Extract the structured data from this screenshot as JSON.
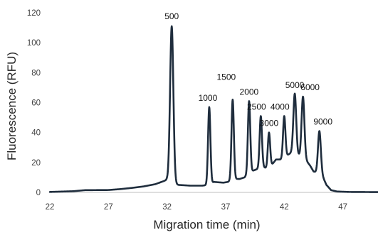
{
  "chart_data": {
    "type": "line",
    "title": "",
    "xlabel": "Migration time (min)",
    "ylabel": "Fluorescence (RFU)",
    "xlim": [
      22,
      50
    ],
    "ylim": [
      0,
      120
    ],
    "xticks": [
      22,
      27,
      32,
      37,
      42,
      47
    ],
    "yticks": [
      0,
      20,
      40,
      60,
      80,
      100,
      120
    ],
    "grid": false,
    "legend": "none",
    "line_color": "#1f2d3d",
    "baseline_points": [
      [
        22,
        0.3
      ],
      [
        24,
        0.8
      ],
      [
        25,
        1.5
      ],
      [
        27,
        1.6
      ],
      [
        28,
        2.2
      ],
      [
        29,
        3.0
      ],
      [
        30,
        4.0
      ],
      [
        31,
        5.5
      ],
      [
        31.7,
        7.5
      ],
      [
        32.0,
        8.5
      ],
      [
        32.3,
        6.0
      ],
      [
        33.0,
        5.0
      ],
      [
        34.0,
        4.5
      ],
      [
        35.0,
        4.5
      ],
      [
        35.5,
        5.0
      ],
      [
        36.0,
        7.0
      ],
      [
        36.8,
        6.5
      ],
      [
        37.2,
        7.0
      ],
      [
        37.7,
        9.0
      ],
      [
        38.2,
        9.0
      ],
      [
        38.6,
        10.0
      ],
      [
        39.2,
        14.0
      ],
      [
        39.5,
        15.0
      ],
      [
        40.2,
        17.0
      ],
      [
        40.5,
        16.0
      ],
      [
        40.8,
        17.0
      ],
      [
        41.3,
        22.0
      ],
      [
        41.7,
        22.0
      ],
      [
        42.3,
        25.0
      ],
      [
        42.7,
        27.0
      ],
      [
        43.2,
        25.0
      ],
      [
        43.8,
        22.0
      ],
      [
        44.2,
        18.0
      ],
      [
        44.5,
        14.0
      ],
      [
        45.2,
        12.0
      ],
      [
        45.6,
        5.0
      ],
      [
        46.0,
        1.5
      ],
      [
        46.5,
        0.6
      ],
      [
        47.5,
        0.3
      ],
      [
        50,
        0.2
      ]
    ],
    "peaks": [
      {
        "label": "500",
        "x": 32.4,
        "y": 111,
        "width": 0.14
      },
      {
        "label": "1000",
        "x": 35.6,
        "y": 57,
        "width": 0.1
      },
      {
        "label": "1500",
        "x": 37.6,
        "y": 62,
        "width": 0.1
      },
      {
        "label": "2000",
        "x": 39.0,
        "y": 61,
        "width": 0.1
      },
      {
        "label": "2500",
        "x": 40.0,
        "y": 51,
        "width": 0.1
      },
      {
        "label": "3000",
        "x": 40.7,
        "y": 40,
        "width": 0.1
      },
      {
        "label": "4000",
        "x": 42.0,
        "y": 51,
        "width": 0.1
      },
      {
        "label": "5000",
        "x": 42.9,
        "y": 66,
        "width": 0.12
      },
      {
        "label": "6000",
        "x": 43.6,
        "y": 64,
        "width": 0.12
      },
      {
        "label": "9000",
        "x": 45.0,
        "y": 41,
        "width": 0.12
      }
    ]
  }
}
